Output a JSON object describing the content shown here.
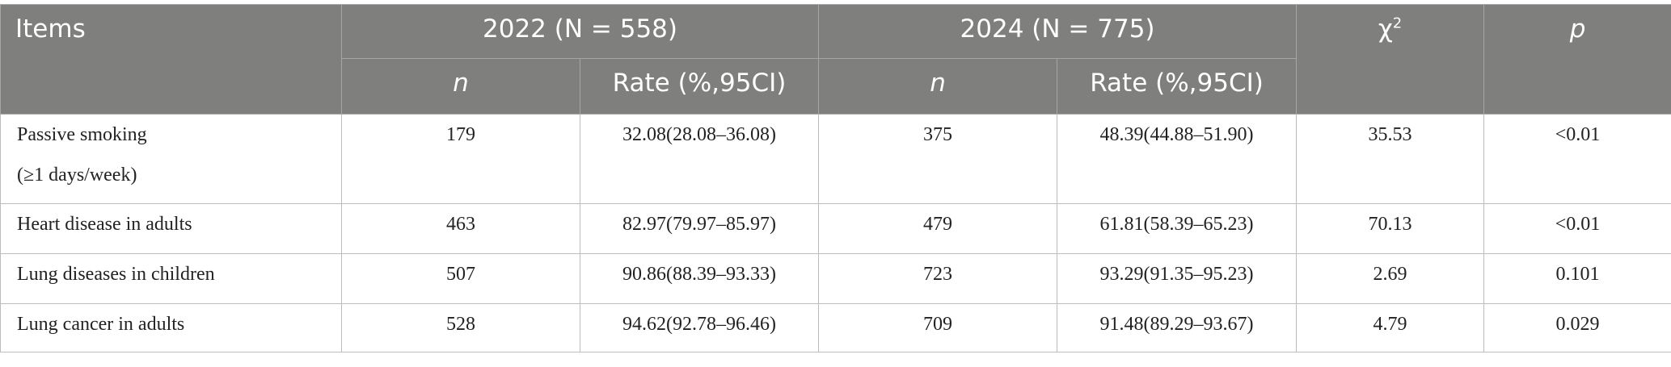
{
  "table": {
    "header": {
      "items": "Items",
      "groups": [
        "2022 (N = 558)",
        "2024 (N = 775)"
      ],
      "chi": {
        "symbol": "χ",
        "superscript": "2"
      },
      "p": "p",
      "sub": [
        "n",
        "Rate (%,95CI)",
        "n",
        "Rate (%,95CI)"
      ]
    },
    "rows": [
      [
        [
          "Passive smoking",
          "(≥1 days/week)"
        ],
        "179",
        "32.08(28.08–36.08)",
        "375",
        "48.39(44.88–51.90)",
        "35.53",
        "<0.01"
      ],
      [
        [
          "Heart disease in adults"
        ],
        "463",
        "82.97(79.97–85.97)",
        "479",
        "61.81(58.39–65.23)",
        "70.13",
        "<0.01"
      ],
      [
        [
          "Lung diseases in children"
        ],
        "507",
        "90.86(88.39–93.33)",
        "723",
        "93.29(91.35–95.23)",
        "2.69",
        "0.101"
      ],
      [
        [
          "Lung cancer in adults"
        ],
        "528",
        "94.62(92.78–96.46)",
        "709",
        "91.48(89.29–93.67)",
        "4.79",
        "0.029"
      ]
    ]
  }
}
